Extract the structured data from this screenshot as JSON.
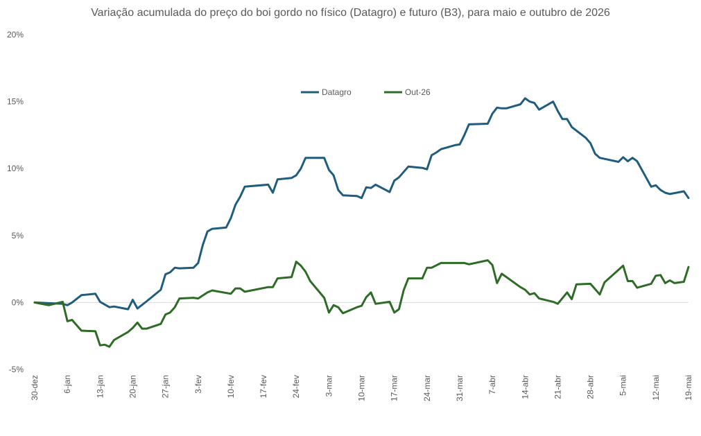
{
  "chart_data": {
    "type": "line",
    "title": "Variação acumulada do preço do boi gordo no físico (Datagro) e futuro (B3), para maio e outubro de 2026",
    "xlabel": "",
    "ylabel": "",
    "ylim": [
      -5,
      20
    ],
    "yticks": [
      -5,
      0,
      5,
      10,
      15,
      20
    ],
    "ytick_labels": [
      "-5%",
      "0%",
      "5%",
      "10%",
      "15%",
      "20%"
    ],
    "x_tick_labels": [
      "30-dez",
      "6-jan",
      "13-jan",
      "20-jan",
      "27-jan",
      "3-fev",
      "10-fev",
      "17-fev",
      "24-fev",
      "3-mar",
      "10-mar",
      "17-mar",
      "24-mar",
      "31-mar",
      "7-abr",
      "14-abr",
      "21-abr",
      "28-abr",
      "5-mai",
      "12-mai",
      "19-mai"
    ],
    "x_range": [
      "2025-12-30",
      "2026-05-19"
    ],
    "grid": false,
    "legend_position": "top-center",
    "series": [
      {
        "name": "Datagro",
        "color": "#1f5c7e",
        "points": [
          [
            "2025-12-30",
            0.0
          ],
          [
            "2026-01-02",
            -0.05
          ],
          [
            "2026-01-05",
            -0.1
          ],
          [
            "2026-01-06",
            -0.2
          ],
          [
            "2026-01-07",
            0.0
          ],
          [
            "2026-01-09",
            0.55
          ],
          [
            "2026-01-12",
            0.65
          ],
          [
            "2026-01-13",
            0.05
          ],
          [
            "2026-01-15",
            -0.35
          ],
          [
            "2026-01-16",
            -0.3
          ],
          [
            "2026-01-19",
            -0.5
          ],
          [
            "2026-01-20",
            0.2
          ],
          [
            "2026-01-21",
            -0.45
          ],
          [
            "2026-01-23",
            0.1
          ],
          [
            "2026-01-26",
            0.95
          ],
          [
            "2026-01-27",
            2.1
          ],
          [
            "2026-01-28",
            2.25
          ],
          [
            "2026-01-29",
            2.6
          ],
          [
            "2026-01-30",
            2.55
          ],
          [
            "2026-02-02",
            2.6
          ],
          [
            "2026-02-03",
            2.95
          ],
          [
            "2026-02-04",
            4.3
          ],
          [
            "2026-02-05",
            5.3
          ],
          [
            "2026-02-06",
            5.5
          ],
          [
            "2026-02-09",
            5.6
          ],
          [
            "2026-02-10",
            6.3
          ],
          [
            "2026-02-11",
            7.3
          ],
          [
            "2026-02-12",
            7.9
          ],
          [
            "2026-02-13",
            8.65
          ],
          [
            "2026-02-18",
            8.8
          ],
          [
            "2026-02-19",
            8.2
          ],
          [
            "2026-02-20",
            9.2
          ],
          [
            "2026-02-23",
            9.3
          ],
          [
            "2026-02-24",
            9.5
          ],
          [
            "2026-02-25",
            10.0
          ],
          [
            "2026-02-26",
            10.8
          ],
          [
            "2026-03-02",
            10.8
          ],
          [
            "2026-03-03",
            9.9
          ],
          [
            "2026-03-04",
            9.5
          ],
          [
            "2026-03-05",
            8.4
          ],
          [
            "2026-03-06",
            8.0
          ],
          [
            "2026-03-09",
            7.95
          ],
          [
            "2026-03-10",
            7.8
          ],
          [
            "2026-03-11",
            8.6
          ],
          [
            "2026-03-12",
            8.55
          ],
          [
            "2026-03-13",
            8.8
          ],
          [
            "2026-03-16",
            8.25
          ],
          [
            "2026-03-17",
            9.1
          ],
          [
            "2026-03-18",
            9.35
          ],
          [
            "2026-03-20",
            10.15
          ],
          [
            "2026-03-23",
            10.05
          ],
          [
            "2026-03-24",
            9.95
          ],
          [
            "2026-03-25",
            11.0
          ],
          [
            "2026-03-26",
            11.2
          ],
          [
            "2026-03-27",
            11.45
          ],
          [
            "2026-03-30",
            11.75
          ],
          [
            "2026-03-31",
            11.8
          ],
          [
            "2026-04-01",
            12.5
          ],
          [
            "2026-04-02",
            13.3
          ],
          [
            "2026-04-06",
            13.35
          ],
          [
            "2026-04-07",
            14.1
          ],
          [
            "2026-04-08",
            14.55
          ],
          [
            "2026-04-09",
            14.5
          ],
          [
            "2026-04-10",
            14.5
          ],
          [
            "2026-04-13",
            14.8
          ],
          [
            "2026-04-14",
            15.25
          ],
          [
            "2026-04-15",
            15.0
          ],
          [
            "2026-04-16",
            14.9
          ],
          [
            "2026-04-17",
            14.4
          ],
          [
            "2026-04-20",
            15.0
          ],
          [
            "2026-04-21",
            14.3
          ],
          [
            "2026-04-22",
            13.7
          ],
          [
            "2026-04-23",
            13.7
          ],
          [
            "2026-04-24",
            13.1
          ],
          [
            "2026-04-27",
            12.3
          ],
          [
            "2026-04-28",
            11.9
          ],
          [
            "2026-04-29",
            11.1
          ],
          [
            "2026-04-30",
            10.8
          ],
          [
            "2026-05-04",
            10.5
          ],
          [
            "2026-05-05",
            10.85
          ],
          [
            "2026-05-06",
            10.55
          ],
          [
            "2026-05-07",
            10.8
          ],
          [
            "2026-05-08",
            10.55
          ],
          [
            "2026-05-11",
            8.65
          ],
          [
            "2026-05-12",
            8.75
          ],
          [
            "2026-05-13",
            8.4
          ],
          [
            "2026-05-14",
            8.2
          ],
          [
            "2026-05-15",
            8.1
          ],
          [
            "2026-05-18",
            8.3
          ],
          [
            "2026-05-19",
            7.8
          ]
        ]
      },
      {
        "name": "Out-26",
        "color": "#2e6b26",
        "points": [
          [
            "2025-12-30",
            0.0
          ],
          [
            "2026-01-02",
            -0.2
          ],
          [
            "2026-01-05",
            0.05
          ],
          [
            "2026-01-06",
            -1.4
          ],
          [
            "2026-01-07",
            -1.3
          ],
          [
            "2026-01-09",
            -2.1
          ],
          [
            "2026-01-12",
            -2.15
          ],
          [
            "2026-01-13",
            -3.2
          ],
          [
            "2026-01-14",
            -3.15
          ],
          [
            "2026-01-15",
            -3.3
          ],
          [
            "2026-01-16",
            -2.8
          ],
          [
            "2026-01-19",
            -2.2
          ],
          [
            "2026-01-20",
            -1.9
          ],
          [
            "2026-01-21",
            -1.5
          ],
          [
            "2026-01-22",
            -1.95
          ],
          [
            "2026-01-23",
            -1.95
          ],
          [
            "2026-01-26",
            -1.6
          ],
          [
            "2026-01-27",
            -0.9
          ],
          [
            "2026-01-28",
            -0.75
          ],
          [
            "2026-01-29",
            -0.35
          ],
          [
            "2026-01-30",
            0.3
          ],
          [
            "2026-02-02",
            0.35
          ],
          [
            "2026-02-03",
            0.3
          ],
          [
            "2026-02-05",
            0.75
          ],
          [
            "2026-02-06",
            0.9
          ],
          [
            "2026-02-10",
            0.65
          ],
          [
            "2026-02-11",
            1.05
          ],
          [
            "2026-02-12",
            1.05
          ],
          [
            "2026-02-13",
            0.8
          ],
          [
            "2026-02-18",
            1.15
          ],
          [
            "2026-02-19",
            1.15
          ],
          [
            "2026-02-20",
            1.8
          ],
          [
            "2026-02-23",
            1.9
          ],
          [
            "2026-02-24",
            3.05
          ],
          [
            "2026-02-25",
            2.75
          ],
          [
            "2026-02-26",
            2.3
          ],
          [
            "2026-02-27",
            1.6
          ],
          [
            "2026-03-02",
            0.35
          ],
          [
            "2026-03-03",
            -0.75
          ],
          [
            "2026-03-04",
            -0.2
          ],
          [
            "2026-03-05",
            -0.35
          ],
          [
            "2026-03-06",
            -0.8
          ],
          [
            "2026-03-09",
            -0.35
          ],
          [
            "2026-03-10",
            -0.25
          ],
          [
            "2026-03-11",
            0.4
          ],
          [
            "2026-03-12",
            0.75
          ],
          [
            "2026-03-13",
            -0.1
          ],
          [
            "2026-03-16",
            0.05
          ],
          [
            "2026-03-17",
            -0.75
          ],
          [
            "2026-03-18",
            -0.5
          ],
          [
            "2026-03-19",
            0.9
          ],
          [
            "2026-03-20",
            1.8
          ],
          [
            "2026-03-23",
            1.8
          ],
          [
            "2026-03-24",
            2.6
          ],
          [
            "2026-03-25",
            2.6
          ],
          [
            "2026-03-27",
            2.95
          ],
          [
            "2026-04-01",
            2.95
          ],
          [
            "2026-04-02",
            2.85
          ],
          [
            "2026-04-06",
            3.15
          ],
          [
            "2026-04-07",
            2.8
          ],
          [
            "2026-04-08",
            1.45
          ],
          [
            "2026-04-09",
            2.15
          ],
          [
            "2026-04-13",
            1.15
          ],
          [
            "2026-04-14",
            0.95
          ],
          [
            "2026-04-15",
            0.6
          ],
          [
            "2026-04-16",
            0.7
          ],
          [
            "2026-04-17",
            0.3
          ],
          [
            "2026-04-20",
            0.05
          ],
          [
            "2026-04-21",
            -0.1
          ],
          [
            "2026-04-23",
            0.75
          ],
          [
            "2026-04-24",
            0.25
          ],
          [
            "2026-04-25",
            1.35
          ],
          [
            "2026-04-28",
            1.4
          ],
          [
            "2026-04-29",
            1.0
          ],
          [
            "2026-04-30",
            0.6
          ],
          [
            "2026-05-01",
            1.5
          ],
          [
            "2026-05-05",
            2.75
          ],
          [
            "2026-05-06",
            1.6
          ],
          [
            "2026-05-07",
            1.6
          ],
          [
            "2026-05-08",
            1.1
          ],
          [
            "2026-05-11",
            1.4
          ],
          [
            "2026-05-12",
            2.0
          ],
          [
            "2026-05-13",
            2.05
          ],
          [
            "2026-05-14",
            1.45
          ],
          [
            "2026-05-15",
            1.65
          ],
          [
            "2026-05-16",
            1.45
          ],
          [
            "2026-05-18",
            1.55
          ],
          [
            "2026-05-19",
            2.65
          ]
        ]
      }
    ]
  }
}
